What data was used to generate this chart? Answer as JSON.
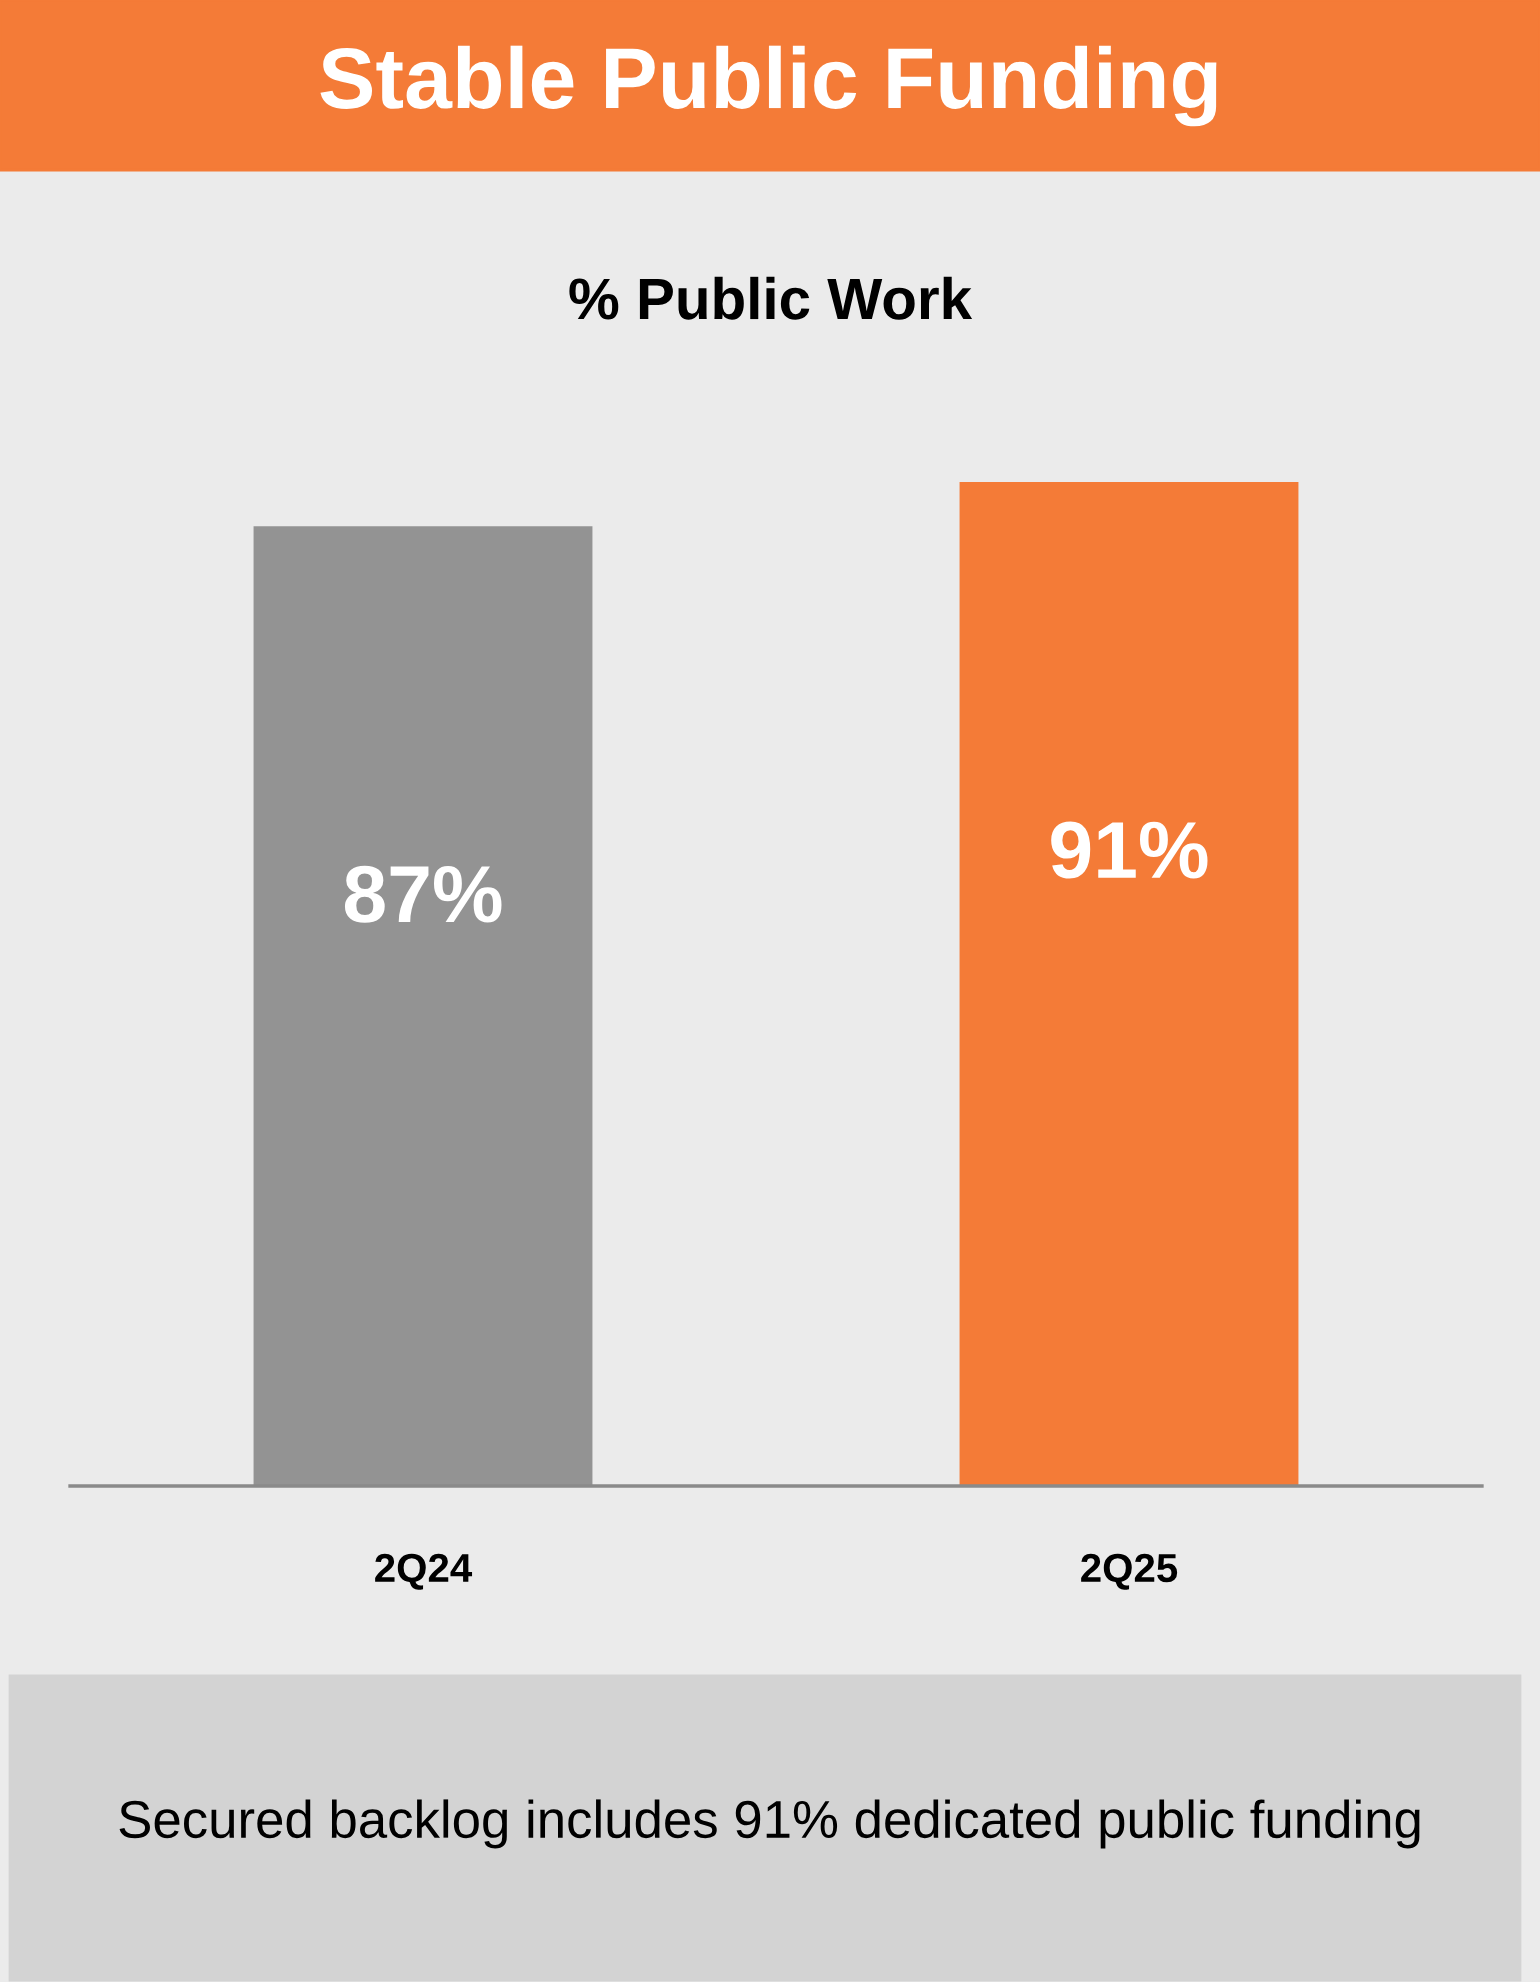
{
  "chart_data": {
    "type": "bar",
    "title": "Stable Public Funding",
    "subtitle": "% Public Work",
    "categories": [
      "2Q24",
      "2Q25"
    ],
    "values": [
      87,
      91
    ],
    "colors": [
      "#939393",
      "#f47b37"
    ],
    "value_labels": [
      "87%",
      "91%"
    ],
    "tick_labels": "x",
    "grid": false,
    "annotations": [
      "Secured backlog includes 91% dedicated public funding"
    ]
  }
}
